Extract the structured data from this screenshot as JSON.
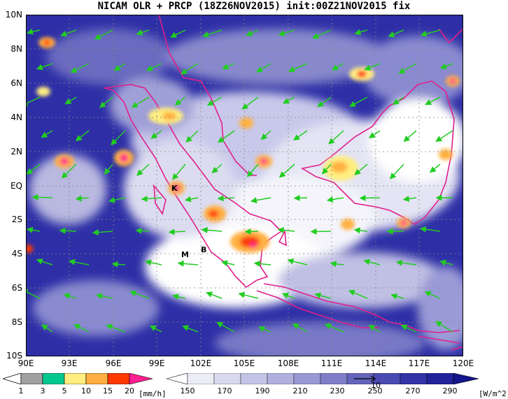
{
  "title": "NICAM OLR + PRCP (18Z26NOV2015) init:00Z21NOV2015 fix",
  "lat_labels": [
    "10N",
    "8N",
    "6N",
    "4N",
    "2N",
    "EQ",
    "2S",
    "4S",
    "6S",
    "8S",
    "10S"
  ],
  "lon_labels": [
    "90E",
    "93E",
    "96E",
    "99E",
    "102E",
    "105E",
    "108E",
    "111E",
    "114E",
    "117E",
    "120E"
  ],
  "station_markers": [
    "K",
    "M",
    "B"
  ],
  "precip_colorbar": {
    "labels": [
      "1",
      "3",
      "5",
      "10",
      "15",
      "20"
    ],
    "unit": "[mm/h]",
    "colors": [
      "#a0a0a0",
      "#00c890",
      "#ffee80",
      "#ffb040",
      "#ff3800",
      "#ff2090"
    ]
  },
  "olr_colorbar": {
    "labels": [
      "150",
      "170",
      "190",
      "210",
      "230",
      "250",
      "270",
      "290"
    ],
    "unit": "[W/m^2]",
    "reference_vector_label": "10",
    "colors": [
      "#ffffff",
      "#ececf6",
      "#d8d8ee",
      "#c4c4e6",
      "#b0b0de",
      "#9898d4",
      "#7e7ec8",
      "#6464bc",
      "#4a4ab0",
      "#3333a6",
      "#22229a",
      "#14148c"
    ]
  },
  "colors": {
    "coastline": "#e0208c",
    "wind_vectors": "#22cc22",
    "ocean_low_olr": "#2e2fa6"
  }
}
